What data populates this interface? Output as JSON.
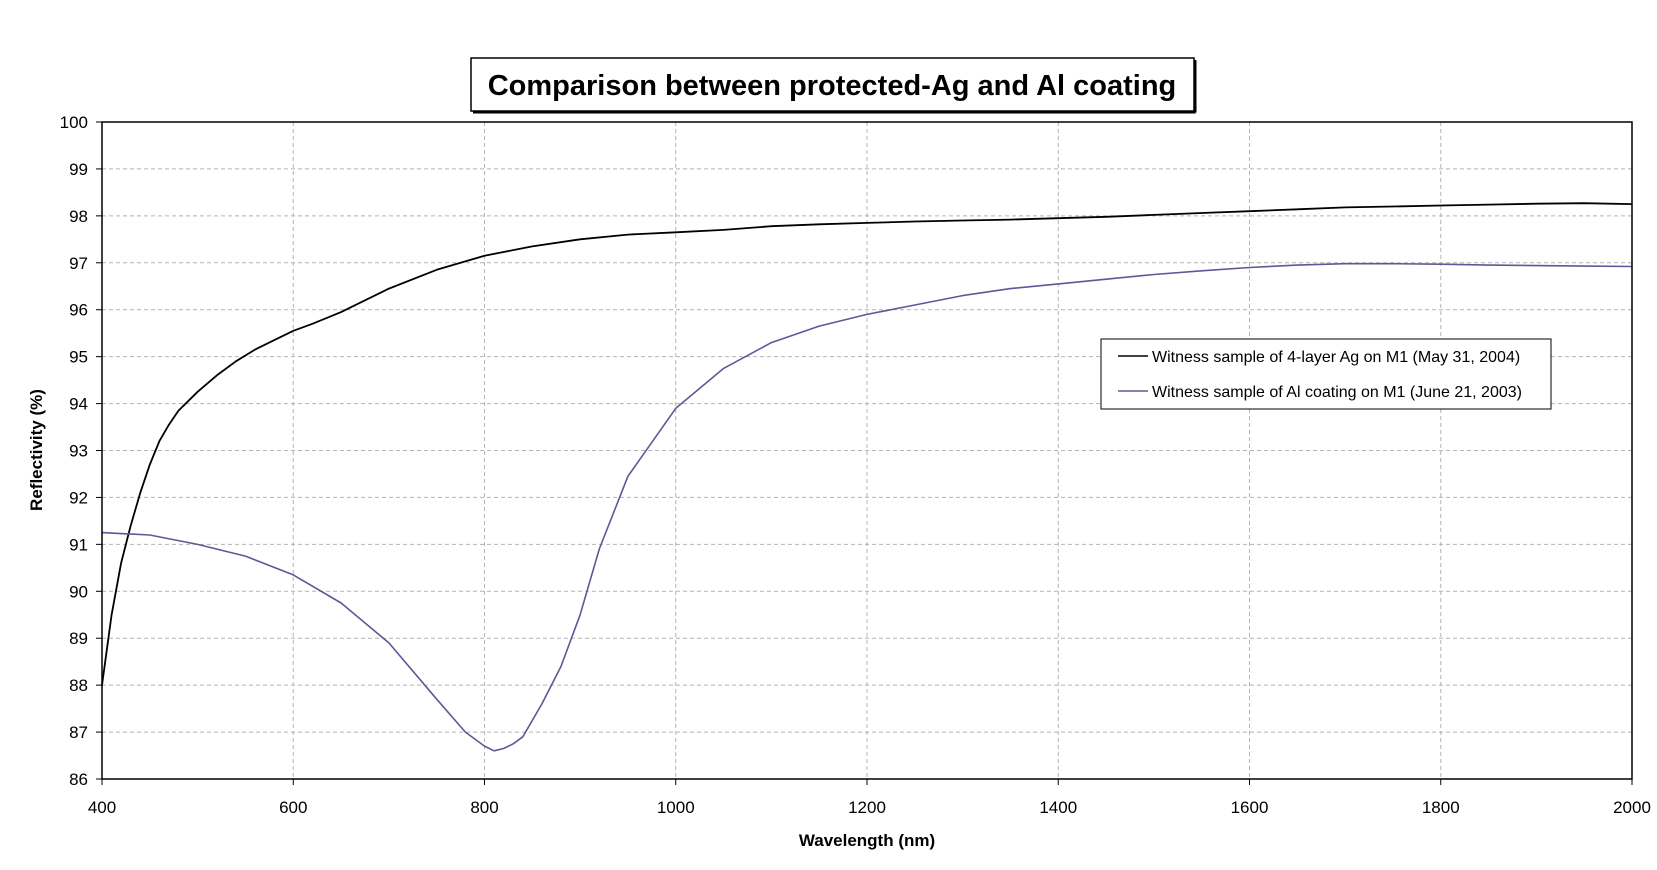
{
  "chart_data": {
    "type": "line",
    "title": "Comparison between protected-Ag and Al coating",
    "xlabel": "Wavelength (nm)",
    "ylabel": "Reflectivity (%)",
    "xlim": [
      400,
      2000
    ],
    "ylim": [
      86,
      100
    ],
    "x_ticks": [
      400,
      600,
      800,
      1000,
      1200,
      1400,
      1600,
      1800,
      2000
    ],
    "x_tick_labels": [
      "400",
      "600",
      "800",
      "1000",
      "1200",
      "1400",
      "1600",
      "1800",
      "2000"
    ],
    "y_ticks": [
      86,
      87,
      88,
      89,
      90,
      91,
      92,
      93,
      94,
      95,
      96,
      97,
      98,
      99,
      100
    ],
    "y_tick_labels": [
      "86",
      "87",
      "88",
      "89",
      "90",
      "91",
      "92",
      "93",
      "94",
      "95",
      "96",
      "97",
      "98",
      "99",
      "100"
    ],
    "grid": true,
    "legend_position": "center-right",
    "series": [
      {
        "name": "Witness sample of 4-layer Ag on M1 (May 31, 2004)",
        "color": "#000000",
        "x": [
          400,
          410,
          420,
          430,
          440,
          450,
          460,
          470,
          480,
          490,
          500,
          520,
          540,
          560,
          580,
          600,
          620,
          650,
          700,
          750,
          800,
          850,
          900,
          950,
          1000,
          1050,
          1100,
          1150,
          1200,
          1250,
          1300,
          1350,
          1400,
          1450,
          1500,
          1550,
          1600,
          1650,
          1700,
          1750,
          1800,
          1850,
          1900,
          1950,
          2000
        ],
        "y": [
          88.0,
          89.5,
          90.6,
          91.4,
          92.1,
          92.7,
          93.2,
          93.55,
          93.85,
          94.05,
          94.25,
          94.6,
          94.9,
          95.15,
          95.35,
          95.55,
          95.7,
          95.95,
          96.45,
          96.85,
          97.15,
          97.35,
          97.5,
          97.6,
          97.65,
          97.7,
          97.78,
          97.82,
          97.85,
          97.88,
          97.9,
          97.92,
          97.95,
          97.98,
          98.02,
          98.06,
          98.1,
          98.14,
          98.18,
          98.2,
          98.22,
          98.24,
          98.26,
          98.27,
          98.25
        ]
      },
      {
        "name": "Witness sample of Al coating on M1 (June 21, 2003)",
        "color": "#5a5a96",
        "x": [
          400,
          450,
          500,
          550,
          600,
          650,
          700,
          750,
          780,
          800,
          810,
          820,
          830,
          840,
          860,
          880,
          900,
          920,
          950,
          1000,
          1050,
          1100,
          1150,
          1200,
          1250,
          1300,
          1350,
          1400,
          1450,
          1500,
          1550,
          1600,
          1650,
          1700,
          1750,
          1800,
          1850,
          1900,
          1950,
          2000
        ],
        "y": [
          91.25,
          91.2,
          91.0,
          90.75,
          90.35,
          89.75,
          88.9,
          87.7,
          87.0,
          86.7,
          86.6,
          86.65,
          86.75,
          86.9,
          87.6,
          88.4,
          89.5,
          90.9,
          92.45,
          93.9,
          94.75,
          95.3,
          95.65,
          95.9,
          96.1,
          96.3,
          96.45,
          96.55,
          96.65,
          96.75,
          96.83,
          96.9,
          96.95,
          96.98,
          96.98,
          96.97,
          96.95,
          96.94,
          96.93,
          96.92
        ]
      }
    ]
  }
}
